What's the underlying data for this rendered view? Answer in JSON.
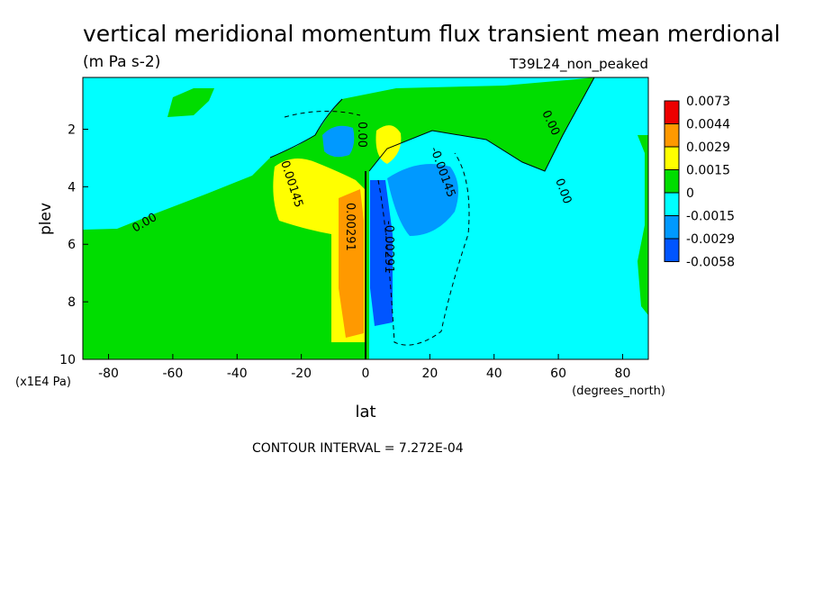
{
  "chart_data": {
    "type": "heatmap",
    "title": "vertical meridional momentum flux transient mean merdional",
    "units": "(m Pa s-2)",
    "dataset": "T39L24_non_peaked",
    "xlabel": "lat",
    "xunits": "(degrees_north)",
    "ylabel": "plev",
    "yunits": "(x1E4 Pa)",
    "xlim": [
      -88,
      88
    ],
    "ylim": [
      10,
      0.2
    ],
    "xticks": [
      "-80",
      "-60",
      "-40",
      "-20",
      "0",
      "20",
      "40",
      "60",
      "80"
    ],
    "yticks": [
      "2",
      "4",
      "6",
      "8",
      "10"
    ],
    "contour_interval_text": "CONTOUR INTERVAL = 7.272E-04",
    "colorbar": {
      "labels": [
        "0.0073",
        "0.0044",
        "0.0029",
        "0.0015",
        "0",
        "-0.0015",
        "-0.0029",
        "-0.0058"
      ],
      "colors": [
        "#ee0000",
        "#ff9900",
        "#ffff00",
        "#00dd00",
        "#00ffff",
        "#0099ff",
        "#0055ff"
      ]
    },
    "contour_labels": [
      "0.00145",
      "-0.00145",
      "0.00",
      "0.00",
      "0.00",
      "0.00",
      "0.00291",
      "-0.00291"
    ],
    "regions": [
      {
        "name": "background-positive",
        "value": 0.0008,
        "color": "#00dd00"
      },
      {
        "name": "upper-left-negative",
        "value": -0.0008,
        "color": "#00ffff"
      },
      {
        "name": "right-negative",
        "value": -0.0008,
        "color": "#00ffff"
      },
      {
        "name": "positive-lobe-20S",
        "value": 0.0022,
        "color": "#ffff00",
        "lat": [
          -30,
          0
        ],
        "plev": [
          3.2,
          9.0
        ]
      },
      {
        "name": "positive-core-5S",
        "value": 0.0036,
        "color": "#ff9900",
        "lat": [
          -10,
          -1
        ],
        "plev": [
          4.2,
          9.0
        ]
      },
      {
        "name": "positive-upper-5N",
        "value": 0.0022,
        "color": "#ffff00",
        "lat": [
          3,
          10
        ],
        "plev": [
          1.5,
          3.0
        ]
      },
      {
        "name": "negative-lobe-15N",
        "value": -0.0022,
        "color": "#0099ff",
        "lat": [
          10,
          30
        ],
        "plev": [
          3.0,
          6.0
        ]
      },
      {
        "name": "negative-upper-8S",
        "value": -0.0022,
        "color": "#0099ff",
        "lat": [
          -11,
          -4
        ],
        "plev": [
          1.7,
          3.0
        ]
      },
      {
        "name": "negative-core-5N",
        "value": -0.0045,
        "color": "#0055ff",
        "lat": [
          2,
          9
        ],
        "plev": [
          4.5,
          9.0
        ]
      }
    ]
  }
}
